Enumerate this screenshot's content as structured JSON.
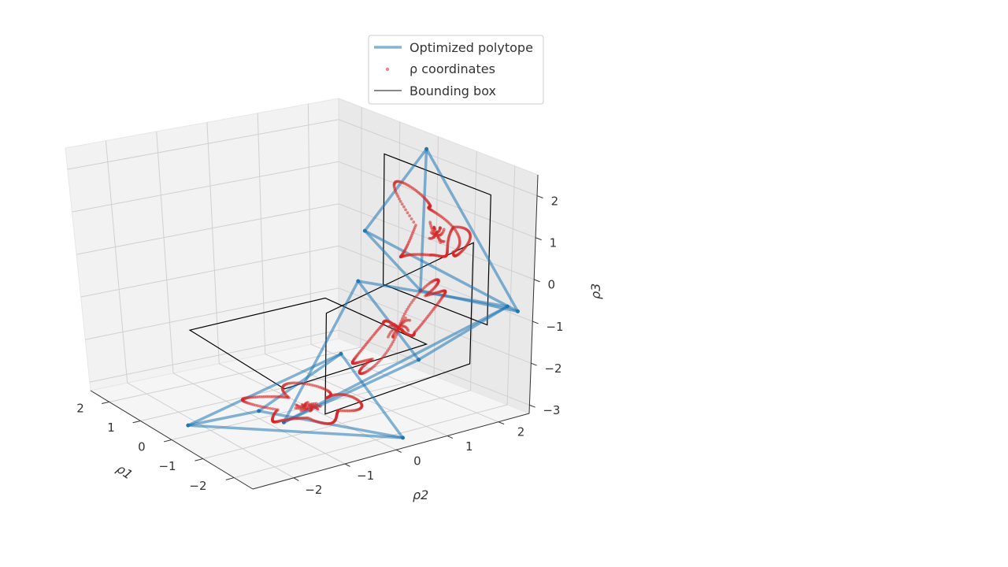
{
  "chart_data": {
    "type": "3d-line-scatter",
    "view": {
      "elevation": 20,
      "azimuth": -35
    },
    "axes": {
      "x": {
        "label": "ρ1",
        "ticks": [
          -2,
          -1,
          0,
          1,
          2
        ],
        "tick_labels": [
          "−2",
          "−1",
          "0",
          "1",
          "2"
        ],
        "range": [
          -2.6,
          2.6
        ]
      },
      "y": {
        "label": "ρ2",
        "ticks": [
          -2,
          -1,
          0,
          1,
          2
        ],
        "tick_labels": [
          "−2",
          "−1",
          "0",
          "1",
          "2"
        ],
        "range": [
          -2.8,
          2.6
        ]
      },
      "z": {
        "label": "ρ3",
        "ticks": [
          -3,
          -2,
          -1,
          0,
          1,
          2
        ],
        "tick_labels": [
          "−3",
          "−2",
          "−1",
          "0",
          "1",
          "2"
        ],
        "range": [
          -3.2,
          2.5
        ]
      }
    },
    "grid": true,
    "legend": {
      "placement": "top-center",
      "entries": [
        {
          "label": "Optimized polytope",
          "style": "line",
          "color": "#1f77b4"
        },
        {
          "label": "ρ coordinates",
          "style": "dots",
          "color": "#d62728"
        },
        {
          "label": "Bounding box",
          "style": "line",
          "color": "#000000"
        }
      ]
    },
    "series": [
      {
        "name": "Optimized polytope",
        "color": "#1f77b4",
        "vertices": [
          [
            0.3,
            -0.8,
            2.1
          ],
          [
            -2.2,
            0.4,
            -0.9
          ],
          [
            1.9,
            2.1,
            -0.4
          ],
          [
            0.4,
            -2.2,
            -1.3
          ]
        ],
        "edges": [
          [
            0,
            1
          ],
          [
            0,
            2
          ],
          [
            0,
            3
          ],
          [
            1,
            2
          ],
          [
            1,
            3
          ],
          [
            2,
            3
          ]
        ]
      },
      {
        "name": "Bounding box",
        "color": "#000000",
        "ranges": {
          "x": [
            -1.4,
            1.4
          ],
          "y": [
            -1.4,
            1.4
          ],
          "z": [
            -1.5,
            1.6
          ]
        }
      },
      {
        "name": "ρ coordinates",
        "color": "#d62728",
        "curve": "closed trajectory inside the bounding box, with a dense cluster near (0, 0, 0.2)",
        "t_range": [
          0,
          1
        ]
      }
    ]
  }
}
